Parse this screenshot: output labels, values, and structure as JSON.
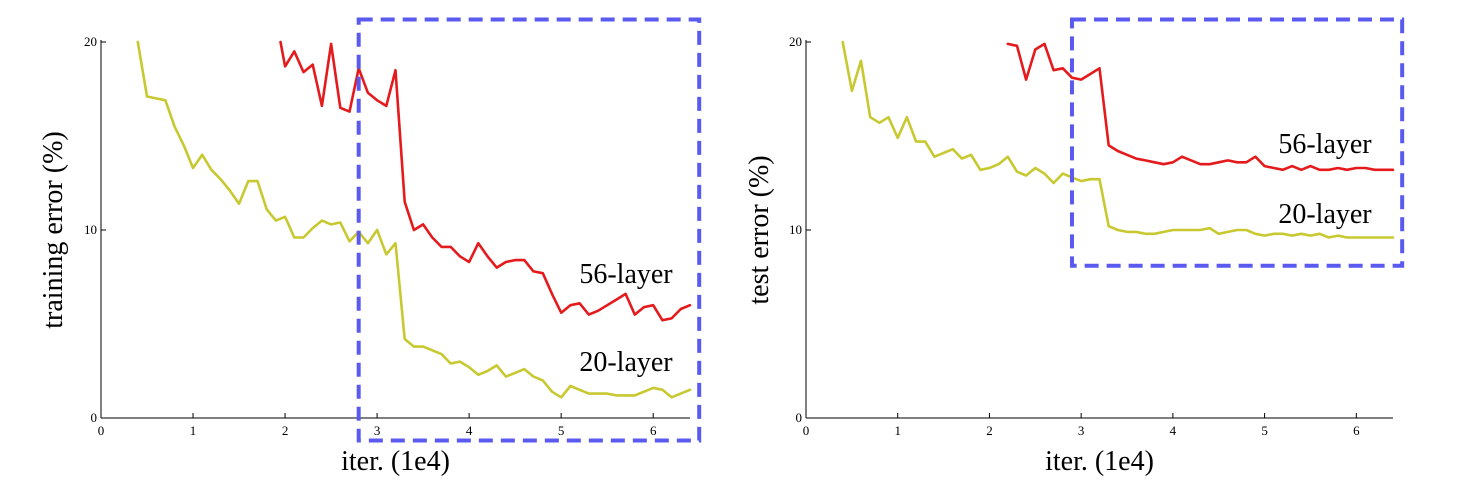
{
  "chart_data": [
    {
      "type": "line",
      "xlabel": "iter. (1e4)",
      "ylabel": "training error (%)",
      "xlim": [
        0,
        6.4
      ],
      "ylim": [
        0,
        20
      ],
      "x_ticks": [
        0,
        1,
        2,
        3,
        4,
        5,
        6
      ],
      "y_ticks": [
        0,
        10,
        20
      ],
      "grid": false,
      "highlight_box": {
        "x_range": [
          2.8,
          6.5
        ],
        "y_range": [
          -1.2,
          21.2
        ],
        "color": "#5a5af0",
        "style": "dashed"
      },
      "series": [
        {
          "name": "56-layer",
          "color": "#e41a1c",
          "x": [
            1.95,
            2.0,
            2.1,
            2.2,
            2.3,
            2.4,
            2.5,
            2.6,
            2.7,
            2.8,
            2.9,
            3.0,
            3.1,
            3.2,
            3.3,
            3.4,
            3.5,
            3.6,
            3.7,
            3.8,
            3.9,
            4.0,
            4.1,
            4.2,
            4.3,
            4.4,
            4.5,
            4.6,
            4.7,
            4.8,
            4.9,
            5.0,
            5.1,
            5.2,
            5.3,
            5.4,
            5.5,
            5.6,
            5.7,
            5.8,
            5.9,
            6.0,
            6.1,
            6.2,
            6.3,
            6.4
          ],
          "values": [
            20.0,
            18.7,
            19.5,
            18.4,
            18.8,
            16.6,
            19.9,
            16.5,
            16.3,
            18.6,
            17.3,
            16.9,
            16.6,
            18.5,
            11.5,
            10.0,
            10.3,
            9.6,
            9.1,
            9.1,
            8.6,
            8.3,
            9.3,
            8.6,
            8.0,
            8.3,
            8.4,
            8.4,
            7.8,
            7.7,
            6.6,
            5.6,
            6.0,
            6.1,
            5.5,
            5.7,
            6.0,
            6.3,
            6.6,
            5.5,
            5.9,
            6.0,
            5.2,
            5.3,
            5.8,
            6.0
          ]
        },
        {
          "name": "20-layer",
          "color": "#c8c831",
          "x": [
            0.4,
            0.5,
            0.6,
            0.7,
            0.8,
            0.9,
            1.0,
            1.1,
            1.2,
            1.3,
            1.4,
            1.5,
            1.6,
            1.7,
            1.8,
            1.9,
            2.0,
            2.1,
            2.2,
            2.3,
            2.4,
            2.5,
            2.6,
            2.7,
            2.8,
            2.9,
            3.0,
            3.1,
            3.2,
            3.3,
            3.4,
            3.5,
            3.6,
            3.7,
            3.8,
            3.9,
            4.0,
            4.1,
            4.2,
            4.3,
            4.4,
            4.5,
            4.6,
            4.7,
            4.8,
            4.9,
            5.0,
            5.1,
            5.2,
            5.3,
            5.4,
            5.5,
            5.6,
            5.7,
            5.8,
            5.9,
            6.0,
            6.1,
            6.2,
            6.3,
            6.4
          ],
          "values": [
            20.0,
            17.1,
            17.0,
            16.9,
            15.5,
            14.5,
            13.3,
            14.0,
            13.2,
            12.7,
            12.1,
            11.4,
            12.6,
            12.6,
            11.1,
            10.5,
            10.7,
            9.6,
            9.6,
            10.1,
            10.5,
            10.3,
            10.4,
            9.4,
            9.9,
            9.3,
            10.0,
            8.7,
            9.3,
            4.2,
            3.8,
            3.8,
            3.6,
            3.4,
            2.9,
            3.0,
            2.7,
            2.3,
            2.5,
            2.8,
            2.2,
            2.4,
            2.6,
            2.2,
            2.0,
            1.4,
            1.1,
            1.7,
            1.5,
            1.3,
            1.3,
            1.3,
            1.2,
            1.2,
            1.2,
            1.4,
            1.6,
            1.5,
            1.1,
            1.3,
            1.5
          ]
        }
      ]
    },
    {
      "type": "line",
      "xlabel": "iter. (1e4)",
      "ylabel": "test error (%)",
      "xlim": [
        0,
        6.4
      ],
      "ylim": [
        0,
        20
      ],
      "x_ticks": [
        0,
        1,
        2,
        3,
        4,
        5,
        6
      ],
      "y_ticks": [
        0,
        10,
        20
      ],
      "grid": false,
      "highlight_box": {
        "x_range": [
          2.9,
          6.5
        ],
        "y_range": [
          8.1,
          21.2
        ],
        "color": "#5a5af0",
        "style": "dashed"
      },
      "series": [
        {
          "name": "56-layer",
          "color": "#e41a1c",
          "x": [
            2.2,
            2.3,
            2.4,
            2.5,
            2.6,
            2.7,
            2.8,
            2.9,
            3.0,
            3.1,
            3.2,
            3.3,
            3.4,
            3.5,
            3.6,
            3.7,
            3.8,
            3.9,
            4.0,
            4.1,
            4.2,
            4.3,
            4.4,
            4.5,
            4.6,
            4.7,
            4.8,
            4.9,
            5.0,
            5.1,
            5.2,
            5.3,
            5.4,
            5.5,
            5.6,
            5.7,
            5.8,
            5.9,
            6.0,
            6.1,
            6.2,
            6.3,
            6.4
          ],
          "values": [
            19.9,
            19.8,
            18.0,
            19.6,
            19.9,
            18.5,
            18.6,
            18.1,
            18.0,
            18.3,
            18.6,
            14.5,
            14.2,
            14.0,
            13.8,
            13.7,
            13.6,
            13.5,
            13.6,
            13.9,
            13.7,
            13.5,
            13.5,
            13.6,
            13.7,
            13.6,
            13.6,
            13.9,
            13.4,
            13.3,
            13.2,
            13.4,
            13.2,
            13.4,
            13.2,
            13.2,
            13.3,
            13.2,
            13.3,
            13.3,
            13.2,
            13.2,
            13.2
          ]
        },
        {
          "name": "20-layer",
          "color": "#c8c831",
          "x": [
            0.4,
            0.5,
            0.6,
            0.7,
            0.8,
            0.9,
            1.0,
            1.1,
            1.2,
            1.3,
            1.4,
            1.5,
            1.6,
            1.7,
            1.8,
            1.9,
            2.0,
            2.1,
            2.2,
            2.3,
            2.4,
            2.5,
            2.6,
            2.7,
            2.8,
            2.9,
            3.0,
            3.1,
            3.2,
            3.3,
            3.4,
            3.5,
            3.6,
            3.7,
            3.8,
            3.9,
            4.0,
            4.1,
            4.2,
            4.3,
            4.4,
            4.5,
            4.6,
            4.7,
            4.8,
            4.9,
            5.0,
            5.1,
            5.2,
            5.3,
            5.4,
            5.5,
            5.6,
            5.7,
            5.8,
            5.9,
            6.0,
            6.1,
            6.2,
            6.3,
            6.4
          ],
          "values": [
            20.0,
            17.4,
            19.0,
            16.0,
            15.7,
            16.0,
            14.9,
            16.0,
            14.7,
            14.7,
            13.9,
            14.1,
            14.3,
            13.8,
            14.0,
            13.2,
            13.3,
            13.5,
            13.9,
            13.1,
            12.9,
            13.3,
            13.0,
            12.5,
            13.0,
            12.8,
            12.6,
            12.7,
            12.7,
            10.2,
            10.0,
            9.9,
            9.9,
            9.8,
            9.8,
            9.9,
            10.0,
            10.0,
            10.0,
            10.0,
            10.1,
            9.8,
            9.9,
            10.0,
            10.0,
            9.8,
            9.7,
            9.8,
            9.8,
            9.7,
            9.8,
            9.7,
            9.8,
            9.6,
            9.7,
            9.6,
            9.6,
            9.6,
            9.6,
            9.6,
            9.6
          ]
        }
      ]
    }
  ]
}
